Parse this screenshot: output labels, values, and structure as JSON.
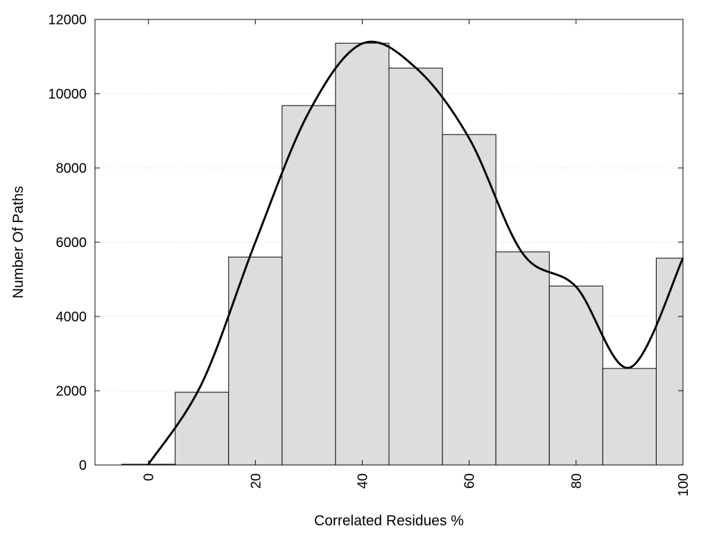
{
  "chart_data": {
    "type": "bar",
    "title": "",
    "xlabel": "Correlated Residues %",
    "ylabel": "Number Of Paths",
    "xlim": [
      -10,
      100
    ],
    "ylim": [
      0,
      12000
    ],
    "x_ticks": [
      0,
      20,
      40,
      60,
      80,
      100
    ],
    "y_ticks": [
      0,
      2000,
      4000,
      6000,
      8000,
      10000,
      12000
    ],
    "grid": "horizontal-dotted",
    "bins": [
      {
        "x0": -5,
        "x1": 5,
        "value": 20
      },
      {
        "x0": 5,
        "x1": 15,
        "value": 1960
      },
      {
        "x0": 15,
        "x1": 25,
        "value": 5600
      },
      {
        "x0": 25,
        "x1": 35,
        "value": 9680
      },
      {
        "x0": 35,
        "x1": 45,
        "value": 11360
      },
      {
        "x0": 45,
        "x1": 55,
        "value": 10690
      },
      {
        "x0": 55,
        "x1": 65,
        "value": 8900
      },
      {
        "x0": 65,
        "x1": 75,
        "value": 5740
      },
      {
        "x0": 75,
        "x1": 85,
        "value": 4820
      },
      {
        "x0": 85,
        "x1": 95,
        "value": 2600
      },
      {
        "x0": 95,
        "x1": 100,
        "value": 5570
      }
    ],
    "curve": {
      "x": [
        0,
        10,
        20,
        30,
        40,
        50,
        60,
        70,
        80,
        90,
        100
      ],
      "y": [
        20,
        2200,
        6000,
        9500,
        11350,
        10700,
        8800,
        5700,
        4800,
        2620,
        5570
      ]
    },
    "bar_color": "#dddddd",
    "curve_color": "#000000"
  }
}
